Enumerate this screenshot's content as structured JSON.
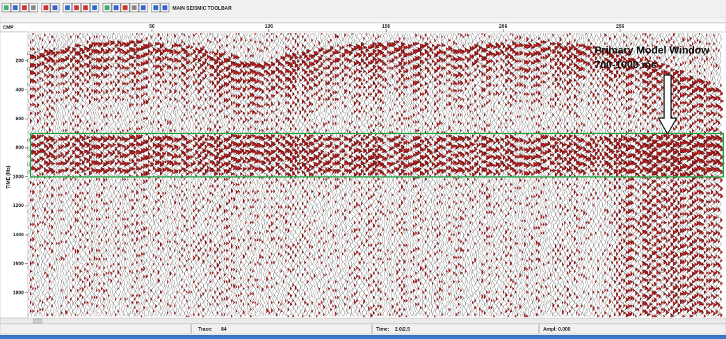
{
  "toolbar": {
    "title": "MAIN SEISMIC TOOLBAR"
  },
  "section": {
    "x_label": "CMP",
    "x_range": [
      3,
      300
    ],
    "x_ticks": [
      56,
      106,
      156,
      206,
      256
    ],
    "y_label": "TIME (Ms)",
    "y_range": [
      0,
      1975
    ],
    "y_ticks": [
      200,
      400,
      600,
      800,
      1000,
      1200,
      1400,
      1600,
      1800
    ]
  },
  "annotation": {
    "title": "Primary Model Window",
    "subtitle": "700-1000 ms",
    "window": [
      700,
      1000
    ]
  },
  "status": {
    "trace_label": "Trace:",
    "trace": 84,
    "time_label": "Time:",
    "time": "2.0/2.5",
    "ampl": "Ampl: 0.000"
  }
}
